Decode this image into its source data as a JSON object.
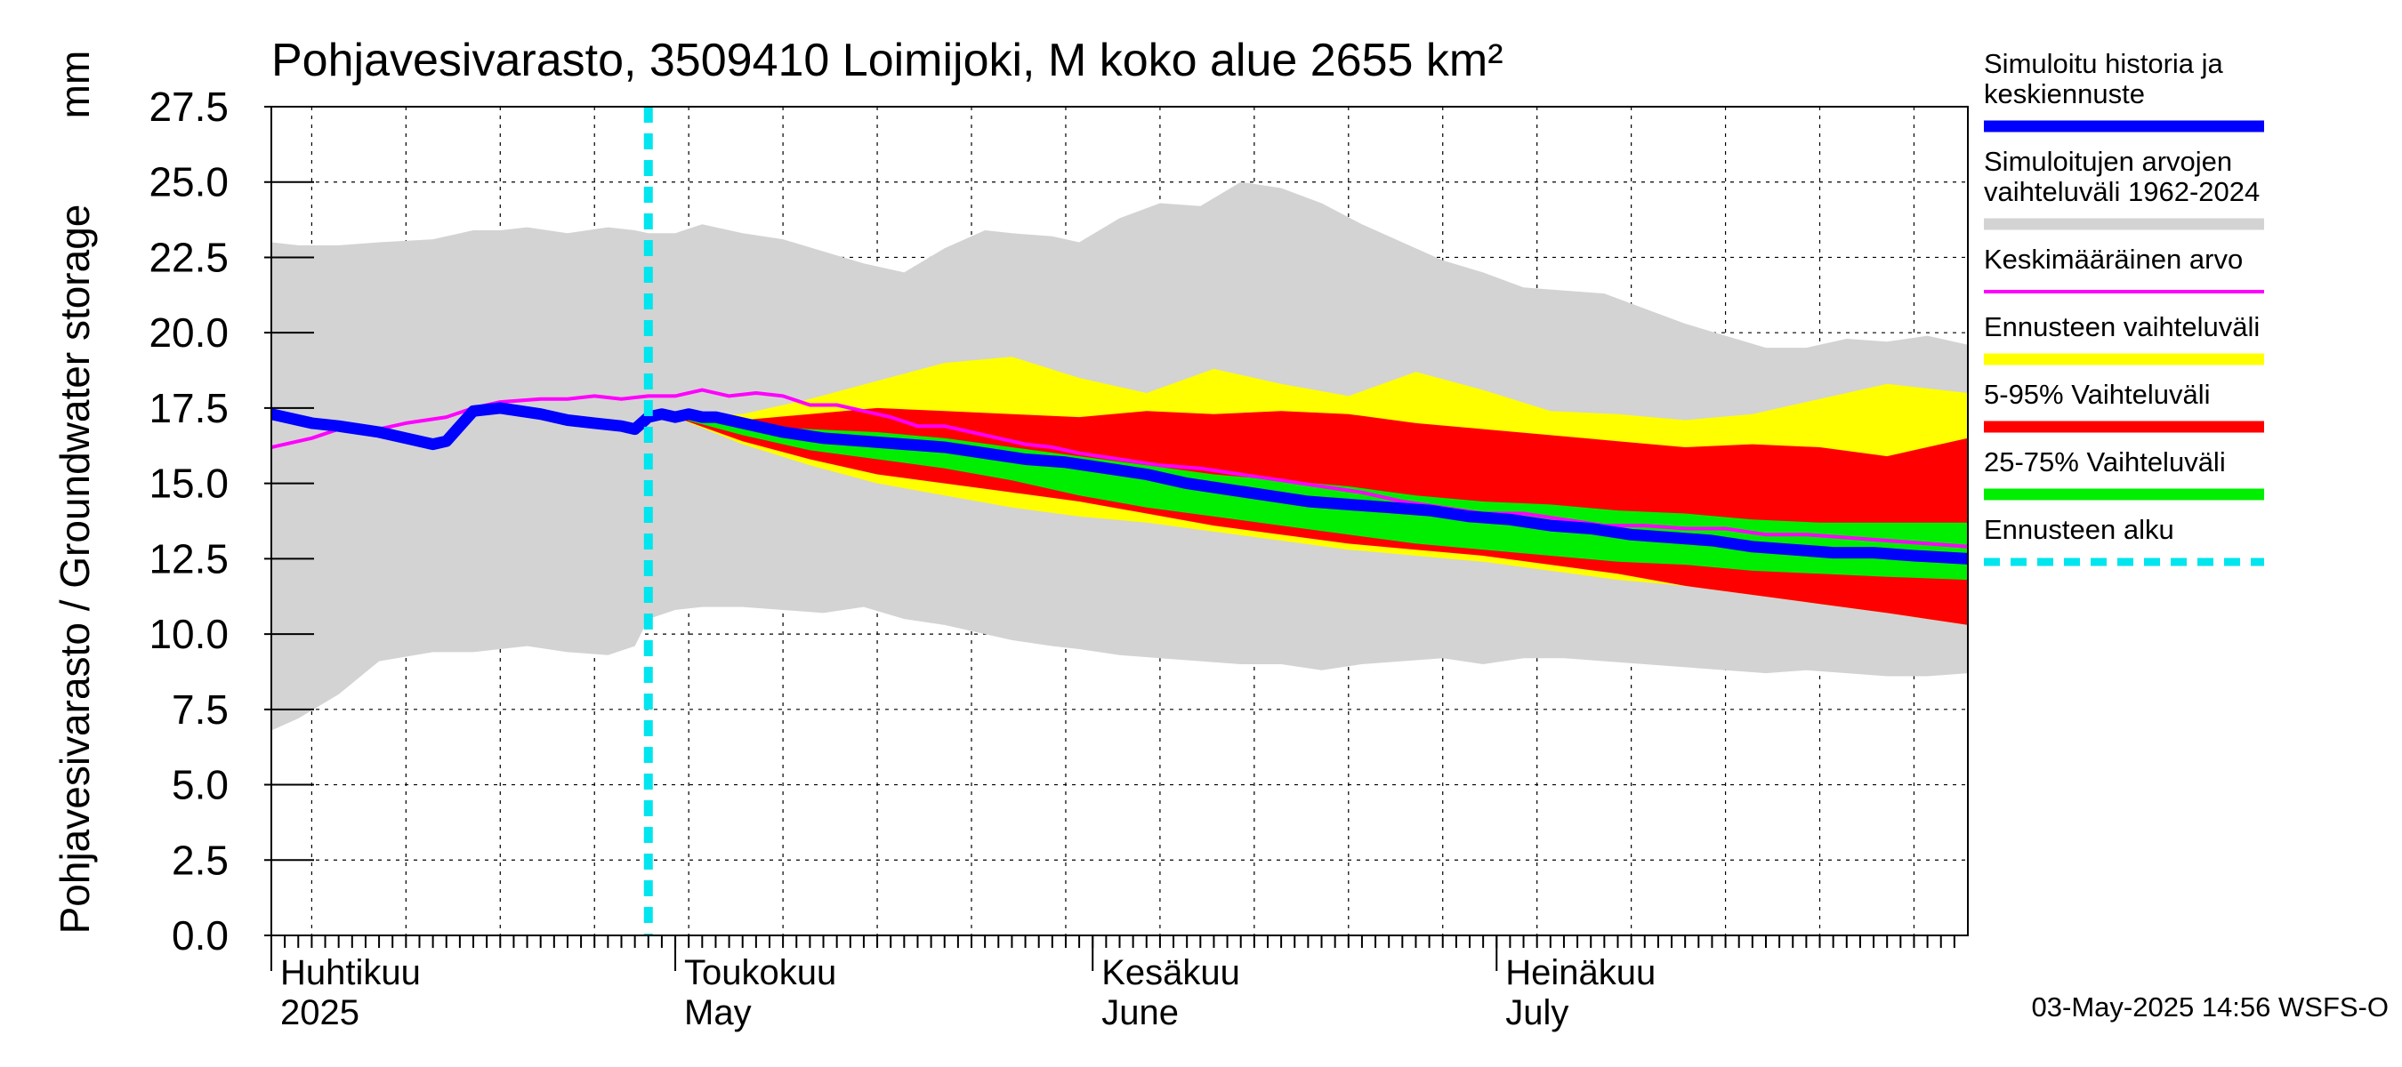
{
  "chart_data": {
    "type": "area",
    "title": "Pohjavesivarasto, 3509410 Loimijoki, M koko alue 2655 km²",
    "ylabel": "Pohjavesivarasto / Groundwater storage",
    "yunit": "mm",
    "ylim": [
      0,
      27.5
    ],
    "yticks": [
      "0.0",
      "2.5",
      "5.0",
      "7.5",
      "10.0",
      "12.5",
      "15.0",
      "17.5",
      "20.0",
      "22.5",
      "25.0",
      "27.5"
    ],
    "grid": true,
    "x_range_days": [
      -30,
      96
    ],
    "month_labels": [
      {
        "fi": "Huhtikuu",
        "en": "2025",
        "day": -30
      },
      {
        "fi": "Toukokuu",
        "en": "May",
        "day": 0
      },
      {
        "fi": "Kesäkuu",
        "en": "June",
        "day": 31
      },
      {
        "fi": "Heinäkuu",
        "en": "July",
        "day": 61
      }
    ],
    "forecast_start_day": -2,
    "series": [
      {
        "name": "Simuloitujen arvojen vaihteluväli 1962-2024",
        "color": "#d3d3d3",
        "x": [
          -32,
          -30,
          -28,
          -25,
          -22,
          -18,
          -15,
          -13,
          -11,
          -8,
          -5,
          -3,
          -2,
          0,
          2,
          3,
          5,
          8,
          11,
          14,
          17,
          20,
          23,
          25,
          28,
          30,
          33,
          36,
          39,
          42,
          45,
          48,
          51,
          54,
          57,
          60,
          63,
          66,
          69,
          72,
          75,
          78,
          81,
          84,
          87,
          90,
          93,
          96
        ],
        "lower": [
          6.7,
          6.8,
          7.2,
          8.0,
          9.1,
          9.4,
          9.4,
          9.5,
          9.6,
          9.4,
          9.3,
          9.6,
          10.5,
          10.8,
          10.9,
          10.9,
          10.9,
          10.8,
          10.7,
          10.9,
          10.5,
          10.3,
          10.0,
          9.8,
          9.6,
          9.5,
          9.3,
          9.2,
          9.1,
          9.0,
          9.0,
          8.8,
          9.0,
          9.1,
          9.2,
          9.0,
          9.2,
          9.2,
          9.1,
          9.0,
          8.9,
          8.8,
          8.7,
          8.8,
          8.7,
          8.6,
          8.6,
          8.7
        ],
        "upper": [
          23.3,
          23.0,
          22.9,
          22.9,
          23.0,
          23.1,
          23.4,
          23.4,
          23.5,
          23.3,
          23.5,
          23.4,
          23.3,
          23.3,
          23.6,
          23.5,
          23.3,
          23.1,
          22.7,
          22.3,
          22.0,
          22.8,
          23.4,
          23.3,
          23.2,
          23.0,
          23.8,
          24.3,
          24.2,
          25.0,
          24.8,
          24.3,
          23.6,
          23.0,
          22.4,
          22.0,
          21.5,
          21.4,
          21.3,
          20.8,
          20.3,
          19.9,
          19.5,
          19.5,
          19.8,
          19.7,
          19.9,
          19.6
        ]
      },
      {
        "name": "Ennusteen vaihteluväli",
        "color": "#ffff00",
        "x": [
          0,
          5,
          10,
          15,
          20,
          25,
          30,
          35,
          40,
          45,
          50,
          55,
          60,
          65,
          70,
          75,
          80,
          85,
          90,
          96
        ],
        "lower": [
          17.2,
          16.3,
          15.6,
          15.0,
          14.6,
          14.2,
          13.9,
          13.7,
          13.4,
          13.1,
          12.8,
          12.6,
          12.4,
          12.1,
          11.8,
          11.6,
          11.3,
          11.0,
          10.7,
          10.3
        ],
        "upper": [
          17.2,
          17.3,
          17.8,
          18.4,
          19.0,
          19.2,
          18.5,
          18.0,
          18.8,
          18.3,
          17.9,
          18.7,
          18.1,
          17.4,
          17.3,
          17.1,
          17.3,
          17.8,
          18.3,
          18.0
        ]
      },
      {
        "name": "5-95% Vaihteluväli",
        "color": "#ff0000",
        "x": [
          0,
          5,
          10,
          15,
          20,
          25,
          30,
          35,
          40,
          45,
          50,
          55,
          60,
          65,
          70,
          75,
          80,
          85,
          90,
          96
        ],
        "lower": [
          17.2,
          16.4,
          15.8,
          15.3,
          15.0,
          14.7,
          14.4,
          14.0,
          13.6,
          13.3,
          13.0,
          12.8,
          12.6,
          12.3,
          12.0,
          11.6,
          11.3,
          11.0,
          10.7,
          10.3
        ],
        "upper": [
          17.2,
          17.1,
          17.3,
          17.5,
          17.4,
          17.3,
          17.2,
          17.4,
          17.3,
          17.4,
          17.3,
          17.0,
          16.8,
          16.6,
          16.4,
          16.2,
          16.3,
          16.2,
          15.9,
          16.5
        ]
      },
      {
        "name": "25-75% Vaihteluväli",
        "color": "#00ee00",
        "x": [
          0,
          5,
          10,
          15,
          20,
          25,
          30,
          35,
          40,
          45,
          50,
          55,
          60,
          65,
          70,
          75,
          80,
          85,
          90,
          96
        ],
        "lower": [
          17.2,
          16.6,
          16.1,
          15.8,
          15.5,
          15.1,
          14.6,
          14.2,
          13.9,
          13.6,
          13.3,
          13.0,
          12.8,
          12.6,
          12.4,
          12.3,
          12.1,
          12.0,
          11.9,
          11.8
        ],
        "upper": [
          17.2,
          16.9,
          16.8,
          16.7,
          16.5,
          16.2,
          15.9,
          15.6,
          15.3,
          15.1,
          14.9,
          14.6,
          14.4,
          14.3,
          14.1,
          14.0,
          13.8,
          13.7,
          13.7,
          13.7
        ]
      },
      {
        "name": "Keskimääräinen arvo",
        "color": "#ff00ff",
        "x": [
          -32,
          -30,
          -27,
          -25,
          -22,
          -20,
          -17,
          -15,
          -13,
          -10,
          -8,
          -6,
          -4,
          -2,
          0,
          2,
          4,
          6,
          8,
          10,
          12,
          14,
          16,
          18,
          20,
          22,
          24,
          26,
          28,
          30,
          33,
          36,
          39,
          42,
          45,
          48,
          51,
          54,
          57,
          60,
          63,
          66,
          69,
          72,
          75,
          78,
          81,
          84,
          87,
          90,
          93,
          96
        ],
        "values": [
          16.0,
          16.2,
          16.5,
          16.8,
          16.8,
          17.0,
          17.2,
          17.5,
          17.7,
          17.8,
          17.8,
          17.9,
          17.8,
          17.9,
          17.9,
          18.1,
          17.9,
          18.0,
          17.9,
          17.6,
          17.6,
          17.4,
          17.2,
          16.9,
          16.9,
          16.7,
          16.5,
          16.3,
          16.2,
          16.0,
          15.8,
          15.6,
          15.5,
          15.3,
          15.1,
          14.9,
          14.7,
          14.4,
          14.2,
          14.0,
          14.0,
          13.8,
          13.6,
          13.6,
          13.5,
          13.5,
          13.3,
          13.3,
          13.2,
          13.1,
          13.0,
          12.9
        ]
      },
      {
        "name": "Simuloitu historia ja keskiennuste",
        "color": "#0000ff",
        "x": [
          -32,
          -30,
          -27,
          -25,
          -22,
          -20,
          -18,
          -17,
          -16,
          -15,
          -13,
          -10,
          -8,
          -6,
          -4,
          -3,
          -2,
          -1,
          0,
          1,
          2,
          3,
          5,
          8,
          11,
          14,
          17,
          20,
          23,
          26,
          29,
          32,
          35,
          38,
          41,
          44,
          47,
          50,
          53,
          56,
          59,
          62,
          65,
          68,
          71,
          74,
          77,
          80,
          83,
          86,
          89,
          92,
          96
        ],
        "values": [
          17.4,
          17.3,
          17.0,
          16.9,
          16.7,
          16.5,
          16.3,
          16.4,
          16.9,
          17.4,
          17.5,
          17.3,
          17.1,
          17.0,
          16.9,
          16.8,
          17.2,
          17.3,
          17.2,
          17.3,
          17.2,
          17.2,
          17.0,
          16.7,
          16.5,
          16.4,
          16.3,
          16.2,
          16.0,
          15.8,
          15.7,
          15.5,
          15.3,
          15.0,
          14.8,
          14.6,
          14.4,
          14.3,
          14.2,
          14.1,
          13.9,
          13.8,
          13.6,
          13.5,
          13.3,
          13.2,
          13.1,
          12.9,
          12.8,
          12.7,
          12.7,
          12.6,
          12.5
        ]
      }
    ],
    "legend": [
      {
        "lines": [
          "Simuloitu historia ja",
          "keskiennuste"
        ],
        "color": "#0000ff",
        "style": "solid"
      },
      {
        "lines": [
          "Simuloitujen arvojen",
          "vaihteluväli 1962-2024"
        ],
        "color": "#d3d3d3",
        "style": "solid"
      },
      {
        "lines": [
          "Keskimääräinen arvo"
        ],
        "color": "#ff00ff",
        "style": "thin"
      },
      {
        "lines": [
          "Ennusteen vaihteluväli"
        ],
        "color": "#ffff00",
        "style": "solid"
      },
      {
        "lines": [
          "5-95% Vaihteluväli"
        ],
        "color": "#ff0000",
        "style": "solid"
      },
      {
        "lines": [
          "25-75% Vaihteluväli"
        ],
        "color": "#00ee00",
        "style": "solid"
      },
      {
        "lines": [
          "Ennusteen alku"
        ],
        "color": "#00e5ee",
        "style": "dashed"
      }
    ],
    "footer": "03-May-2025 14:56 WSFS-O"
  }
}
